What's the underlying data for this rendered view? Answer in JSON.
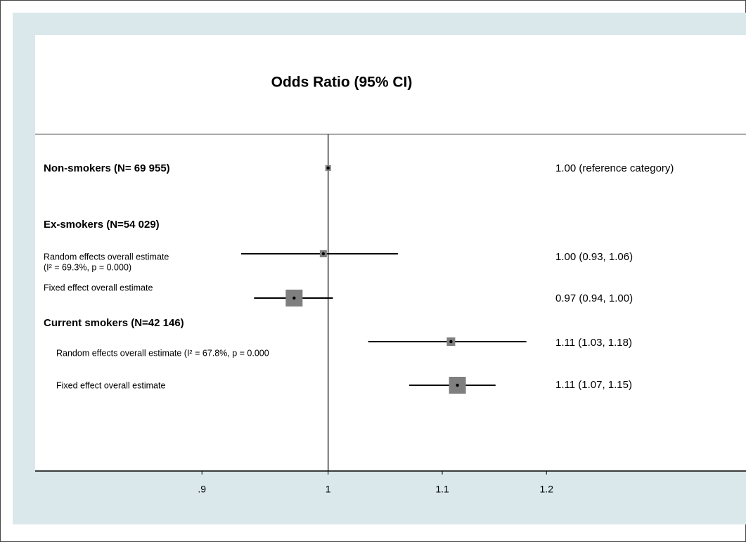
{
  "chart_data": {
    "type": "forest",
    "title": "Odds Ratio (95% CI)",
    "xscale": "log",
    "xlim": [
      0.783,
      1.415
    ],
    "xticks": [
      {
        "value": 0.9,
        "label": ".9"
      },
      1,
      1.1,
      1.2
    ],
    "reference_line": 1,
    "box_color": "#7f7f7f",
    "rows": [
      {
        "label": "Non-smokers (N= 69 955)",
        "bold": true,
        "estimate": 1,
        "value_label": "1.00 (reference category)"
      },
      {
        "label": "Ex-smokers (N=54 029)",
        "bold": true
      },
      {
        "label": "Random effects overall estimate",
        "sublabel": "(I² = 69.3%, p = 0.000)",
        "estimate": 0.996,
        "ci": [
          0.93,
          1.06
        ],
        "value_label": "1.00 (0.93, 1.06)"
      },
      {
        "label": "Fixed effect overall estimate",
        "estimate": 0.972,
        "ci": [
          0.94,
          1.004
        ],
        "value_label": "0.97 (0.94, 1.00)"
      },
      {
        "label": "Current smokers (N=42 146)",
        "bold": true
      },
      {
        "label": "Random effects overall estimate (I² = 67.8%, p = 0.000",
        "estimate": 1.108,
        "ci": [
          1.034,
          1.18
        ],
        "value_label": "1.11 (1.03, 1.18)"
      },
      {
        "label": "Fixed effect overall estimate",
        "estimate": 1.114,
        "ci": [
          1.07,
          1.15
        ],
        "value_label": "1.11 (1.07, 1.15)"
      }
    ]
  }
}
